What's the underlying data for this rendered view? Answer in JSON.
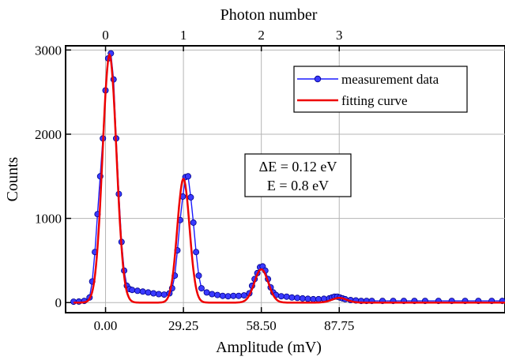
{
  "chart_data": {
    "type": "line",
    "xlabel": "Amplitude (mV)",
    "ylabel": "Counts",
    "top_xlabel": "Photon number",
    "xlim": [
      -15,
      150
    ],
    "ylim": [
      -120,
      3050
    ],
    "x_ticks": [
      0,
      29.25,
      58.5,
      87.75
    ],
    "x_tick_labels": [
      "0.00",
      "29.25",
      "58.50",
      "87.75"
    ],
    "y_ticks": [
      0,
      1000,
      2000,
      3000
    ],
    "y_tick_labels": [
      "0",
      "1000",
      "2000",
      "3000"
    ],
    "top_ticks": [
      0,
      29.25,
      58.5,
      87.75
    ],
    "top_tick_labels": [
      "0",
      "1",
      "2",
      "3"
    ],
    "grid": true,
    "legend_position": "top-right",
    "annotation": [
      "ΔE = 0.12 eV",
      "E = 0.8 eV"
    ],
    "series": [
      {
        "name": "measurement data",
        "style": "line+markers",
        "color": "#1a1aff",
        "x": [
          -12,
          -10,
          -8,
          -6,
          -5,
          -4,
          -3,
          -2,
          -1,
          0,
          1,
          2,
          3,
          4,
          5,
          6,
          7,
          8,
          9,
          10,
          12,
          14,
          16,
          18,
          20,
          22,
          24,
          25,
          26,
          27,
          28,
          29,
          30,
          31,
          32,
          33,
          34,
          35,
          36,
          38,
          40,
          42,
          44,
          46,
          48,
          50,
          52,
          54,
          55,
          56,
          57,
          58,
          59,
          60,
          61,
          62,
          63,
          64,
          66,
          68,
          70,
          72,
          74,
          76,
          78,
          80,
          82,
          84,
          85,
          86,
          87,
          88,
          89,
          90,
          92,
          94,
          96,
          98,
          100,
          104,
          108,
          112,
          116,
          120,
          125,
          130,
          135,
          140,
          145,
          149
        ],
        "y": [
          10,
          12,
          20,
          60,
          250,
          600,
          1050,
          1500,
          1950,
          2520,
          2900,
          2960,
          2650,
          1950,
          1290,
          720,
          380,
          200,
          160,
          150,
          140,
          130,
          120,
          110,
          100,
          95,
          110,
          170,
          320,
          620,
          980,
          1260,
          1490,
          1500,
          1250,
          950,
          600,
          320,
          170,
          120,
          100,
          90,
          80,
          75,
          80,
          80,
          85,
          110,
          200,
          280,
          350,
          420,
          430,
          380,
          280,
          180,
          120,
          90,
          75,
          70,
          60,
          55,
          50,
          45,
          40,
          40,
          45,
          50,
          60,
          70,
          70,
          60,
          50,
          40,
          30,
          25,
          20,
          20,
          20,
          20,
          20,
          20,
          20,
          20,
          20,
          20,
          20,
          20,
          20,
          20
        ]
      },
      {
        "name": "fitting curve",
        "style": "line",
        "color": "#ee0000"
      }
    ]
  }
}
